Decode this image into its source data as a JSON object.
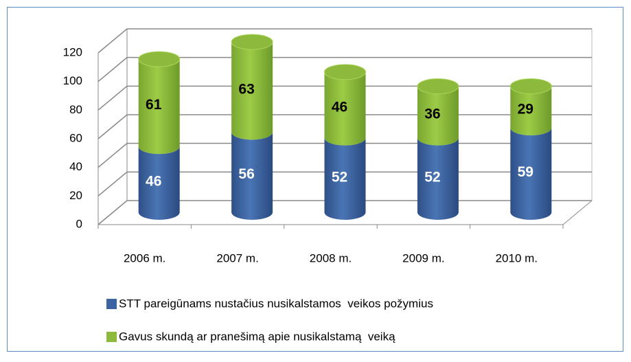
{
  "chart_data": {
    "type": "bar",
    "stacked": true,
    "categories": [
      "2006 m.",
      "2007 m.",
      "2008 m.",
      "2009 m.",
      "2010 m."
    ],
    "series": [
      {
        "name": "STT pareigūnams nustačius nusikalstamos  veikos požymius",
        "color": "#3c64a2",
        "values": [
          46,
          56,
          52,
          52,
          59
        ]
      },
      {
        "name": "Gavus skundą ar pranešimą apie nusikalstamą  veiką",
        "color": "#8dba3c",
        "values": [
          61,
          63,
          46,
          36,
          29
        ]
      }
    ],
    "ylim": [
      0,
      120
    ],
    "yticks": [
      0,
      20,
      40,
      60,
      80,
      100,
      120
    ],
    "grid": true,
    "legend": "bottom"
  }
}
